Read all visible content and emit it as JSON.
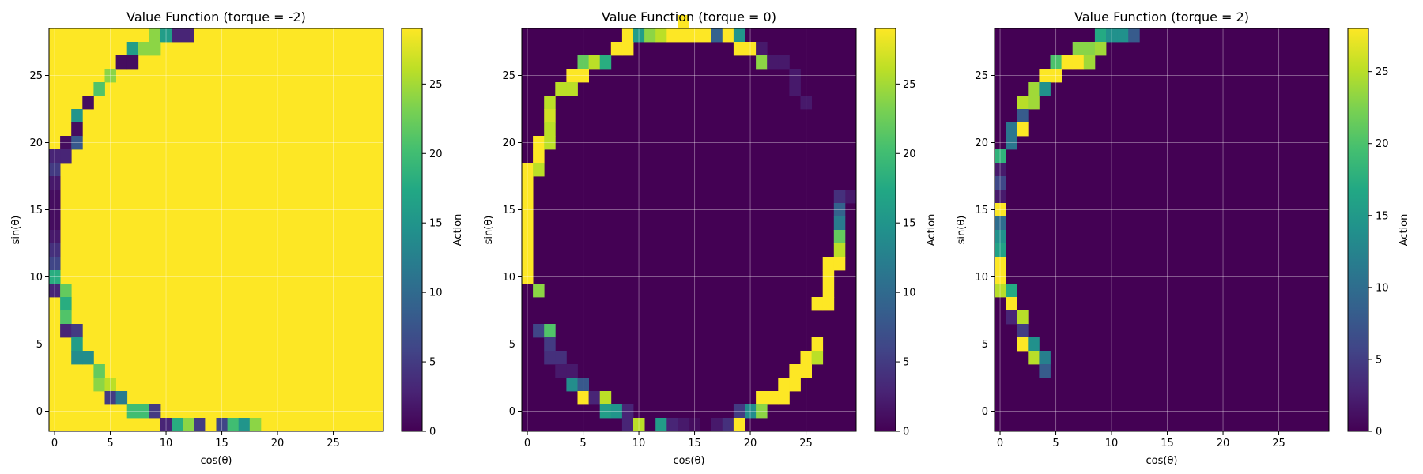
{
  "chart_data": [
    {
      "type": "heatmap",
      "title": "Value Function (torque = -2)",
      "xlabel": "cos(θ)",
      "ylabel": "sin(θ)",
      "colorbar_label": "Action",
      "grid_size": 30,
      "xticks": [
        0,
        5,
        10,
        15,
        20,
        25
      ],
      "yticks": [
        0,
        5,
        10,
        15,
        20,
        25
      ],
      "colorbar_ticks": [
        0,
        5,
        10,
        15,
        20,
        25
      ],
      "vmin": 0,
      "vmax": 29,
      "background_value": 29,
      "grid": true,
      "cells": [
        [
          9,
          28,
          24
        ],
        [
          10,
          28,
          16
        ],
        [
          11,
          28,
          3
        ],
        [
          12,
          28,
          3
        ],
        [
          7,
          27,
          16
        ],
        [
          8,
          27,
          24
        ],
        [
          9,
          27,
          24
        ],
        [
          6,
          26,
          1
        ],
        [
          7,
          26,
          1
        ],
        [
          5,
          25,
          24
        ],
        [
          4,
          24,
          21
        ],
        [
          3,
          23,
          1
        ],
        [
          2,
          22,
          15
        ],
        [
          2,
          21,
          1
        ],
        [
          1,
          20,
          1
        ],
        [
          2,
          20,
          8
        ],
        [
          0,
          19,
          3
        ],
        [
          1,
          19,
          3
        ],
        [
          0,
          18,
          5
        ],
        [
          0,
          17,
          2
        ],
        [
          0,
          16,
          1
        ],
        [
          0,
          15,
          1
        ],
        [
          0,
          14,
          1
        ],
        [
          0,
          13,
          2
        ],
        [
          0,
          12,
          4
        ],
        [
          0,
          11,
          6
        ],
        [
          0,
          10,
          18
        ],
        [
          0,
          9,
          3
        ],
        [
          1,
          9,
          22
        ],
        [
          1,
          8,
          18
        ],
        [
          1,
          7,
          21
        ],
        [
          1,
          6,
          3
        ],
        [
          2,
          6,
          5
        ],
        [
          2,
          5,
          16
        ],
        [
          2,
          4,
          14
        ],
        [
          3,
          4,
          14
        ],
        [
          4,
          3,
          22
        ],
        [
          4,
          2,
          24
        ],
        [
          5,
          2,
          26
        ],
        [
          5,
          1,
          5
        ],
        [
          6,
          1,
          12
        ],
        [
          7,
          0,
          20
        ],
        [
          8,
          0,
          20
        ],
        [
          9,
          0,
          5
        ],
        [
          10,
          -1,
          3
        ],
        [
          11,
          -1,
          18
        ],
        [
          12,
          -1,
          24
        ],
        [
          13,
          -1,
          5
        ],
        [
          14,
          -1,
          29
        ],
        [
          15,
          -1,
          6
        ],
        [
          16,
          -1,
          20
        ],
        [
          17,
          -1,
          15
        ],
        [
          18,
          -1,
          24
        ]
      ]
    },
    {
      "type": "heatmap",
      "title": "Value Function (torque = 0)",
      "xlabel": "cos(θ)",
      "ylabel": "sin(θ)",
      "colorbar_label": "Action",
      "grid_size": 30,
      "xticks": [
        0,
        5,
        10,
        15,
        20,
        25
      ],
      "yticks": [
        0,
        5,
        10,
        15,
        20,
        25
      ],
      "colorbar_ticks": [
        0,
        5,
        10,
        15,
        20,
        25
      ],
      "vmin": 0,
      "vmax": 29,
      "background_value": 0,
      "grid": true,
      "cells": [
        [
          14,
          29,
          29
        ],
        [
          9,
          28,
          29
        ],
        [
          10,
          28,
          16
        ],
        [
          11,
          28,
          24
        ],
        [
          12,
          28,
          26
        ],
        [
          13,
          28,
          29
        ],
        [
          14,
          28,
          29
        ],
        [
          15,
          28,
          29
        ],
        [
          16,
          28,
          29
        ],
        [
          17,
          28,
          9
        ],
        [
          18,
          28,
          29
        ],
        [
          19,
          28,
          15
        ],
        [
          8,
          27,
          29
        ],
        [
          9,
          27,
          29
        ],
        [
          19,
          27,
          29
        ],
        [
          20,
          27,
          29
        ],
        [
          21,
          27,
          2
        ],
        [
          5,
          26,
          22
        ],
        [
          6,
          26,
          26
        ],
        [
          7,
          26,
          18
        ],
        [
          21,
          26,
          24
        ],
        [
          22,
          26,
          2
        ],
        [
          23,
          26,
          2
        ],
        [
          4,
          25,
          29
        ],
        [
          5,
          25,
          29
        ],
        [
          24,
          25,
          2
        ],
        [
          3,
          24,
          26
        ],
        [
          4,
          24,
          26
        ],
        [
          24,
          24,
          2
        ],
        [
          2,
          23,
          26
        ],
        [
          25,
          23,
          2
        ],
        [
          2,
          22,
          27
        ],
        [
          2,
          21,
          26
        ],
        [
          1,
          20,
          29
        ],
        [
          2,
          20,
          26
        ],
        [
          1,
          19,
          29
        ],
        [
          0,
          18,
          29
        ],
        [
          1,
          18,
          26
        ],
        [
          0,
          17,
          29
        ],
        [
          0,
          16,
          29
        ],
        [
          0,
          15,
          29
        ],
        [
          0,
          14,
          29
        ],
        [
          0,
          13,
          29
        ],
        [
          0,
          12,
          29
        ],
        [
          0,
          11,
          29
        ],
        [
          0,
          10,
          29
        ],
        [
          1,
          9,
          24
        ],
        [
          29,
          16,
          2
        ],
        [
          28,
          16,
          4
        ],
        [
          28,
          15,
          9
        ],
        [
          28,
          14,
          12
        ],
        [
          28,
          13,
          22
        ],
        [
          28,
          12,
          26
        ],
        [
          27,
          11,
          29
        ],
        [
          28,
          11,
          29
        ],
        [
          27,
          10,
          29
        ],
        [
          27,
          9,
          29
        ],
        [
          26,
          8,
          29
        ],
        [
          27,
          8,
          29
        ],
        [
          1,
          6,
          6
        ],
        [
          2,
          6,
          21
        ],
        [
          2,
          5,
          5
        ],
        [
          26,
          5,
          29
        ],
        [
          2,
          4,
          4
        ],
        [
          3,
          4,
          4
        ],
        [
          25,
          4,
          29
        ],
        [
          26,
          4,
          26
        ],
        [
          3,
          3,
          2
        ],
        [
          4,
          3,
          2
        ],
        [
          24,
          3,
          29
        ],
        [
          25,
          3,
          29
        ],
        [
          4,
          2,
          14
        ],
        [
          5,
          2,
          8
        ],
        [
          23,
          2,
          29
        ],
        [
          24,
          2,
          29
        ],
        [
          5,
          1,
          29
        ],
        [
          6,
          1,
          3
        ],
        [
          7,
          1,
          26
        ],
        [
          21,
          1,
          29
        ],
        [
          22,
          1,
          29
        ],
        [
          23,
          1,
          29
        ],
        [
          7,
          0,
          16
        ],
        [
          8,
          0,
          15
        ],
        [
          9,
          0,
          3
        ],
        [
          19,
          0,
          5
        ],
        [
          20,
          0,
          14
        ],
        [
          21,
          0,
          24
        ],
        [
          9,
          -1,
          3
        ],
        [
          10,
          -1,
          26
        ],
        [
          12,
          -1,
          16
        ],
        [
          13,
          -1,
          3
        ],
        [
          14,
          -1,
          2
        ],
        [
          15,
          -1,
          1
        ],
        [
          17,
          -1,
          2
        ],
        [
          18,
          -1,
          4
        ],
        [
          19,
          -1,
          29
        ]
      ]
    },
    {
      "type": "heatmap",
      "title": "Value Function (torque = 2)",
      "xlabel": "cos(θ)",
      "ylabel": "sin(θ)",
      "colorbar_label": "Action",
      "grid_size": 30,
      "xticks": [
        0,
        5,
        10,
        15,
        20,
        25
      ],
      "yticks": [
        0,
        5,
        10,
        15,
        20,
        25
      ],
      "colorbar_ticks": [
        0,
        5,
        10,
        15,
        20,
        25
      ],
      "vmin": 0,
      "vmax": 28,
      "background_value": 0,
      "grid": true,
      "cells": [
        [
          9,
          28,
          17
        ],
        [
          10,
          28,
          14
        ],
        [
          11,
          28,
          14
        ],
        [
          12,
          28,
          8
        ],
        [
          7,
          27,
          23
        ],
        [
          8,
          27,
          23
        ],
        [
          9,
          27,
          24
        ],
        [
          5,
          26,
          20
        ],
        [
          6,
          26,
          28
        ],
        [
          7,
          26,
          28
        ],
        [
          8,
          26,
          24
        ],
        [
          4,
          25,
          28
        ],
        [
          5,
          25,
          28
        ],
        [
          3,
          24,
          24
        ],
        [
          4,
          24,
          14
        ],
        [
          2,
          23,
          25
        ],
        [
          3,
          23,
          24
        ],
        [
          2,
          22,
          8
        ],
        [
          1,
          21,
          11
        ],
        [
          2,
          21,
          28
        ],
        [
          1,
          20,
          11
        ],
        [
          0,
          19,
          18
        ],
        [
          0,
          18,
          2
        ],
        [
          0,
          17,
          6
        ],
        [
          0,
          16,
          2
        ],
        [
          0,
          15,
          28
        ],
        [
          0,
          14,
          10
        ],
        [
          0,
          13,
          14
        ],
        [
          0,
          12,
          16
        ],
        [
          0,
          11,
          28
        ],
        [
          0,
          10,
          28
        ],
        [
          0,
          9,
          25
        ],
        [
          1,
          9,
          17
        ],
        [
          1,
          8,
          28
        ],
        [
          1,
          7,
          3
        ],
        [
          2,
          7,
          25
        ],
        [
          2,
          6,
          5
        ],
        [
          2,
          5,
          28
        ],
        [
          3,
          5,
          14
        ],
        [
          3,
          4,
          25
        ],
        [
          4,
          4,
          12
        ],
        [
          4,
          3,
          8
        ]
      ]
    }
  ]
}
